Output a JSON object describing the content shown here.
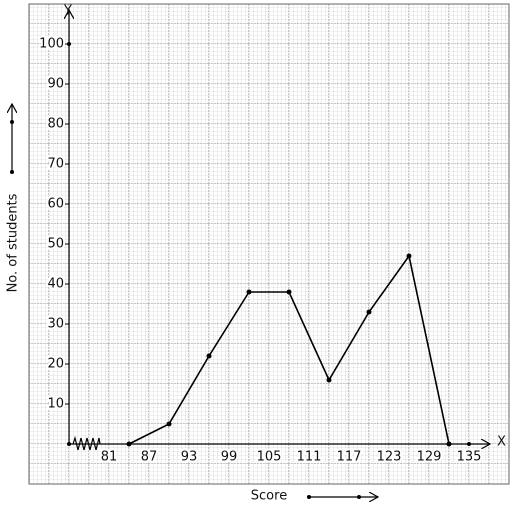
{
  "chart_data": {
    "type": "line",
    "x_label": "Score",
    "y_label": "No. of students",
    "x_axis_name": "X",
    "y_axis_name": "Y",
    "x": [
      84,
      90,
      96,
      102,
      108,
      114,
      120,
      126,
      132
    ],
    "values": [
      0,
      5,
      22,
      38,
      38,
      16,
      33,
      47,
      0
    ],
    "color": "#000000",
    "xlim": [
      75,
      135
    ],
    "ylim": [
      0,
      100
    ],
    "xticks": [
      81,
      87,
      93,
      99,
      105,
      111,
      117,
      123,
      129,
      135
    ],
    "yticks": [
      10,
      20,
      30,
      40,
      50,
      60,
      70,
      80,
      90,
      100
    ],
    "grid": true
  }
}
